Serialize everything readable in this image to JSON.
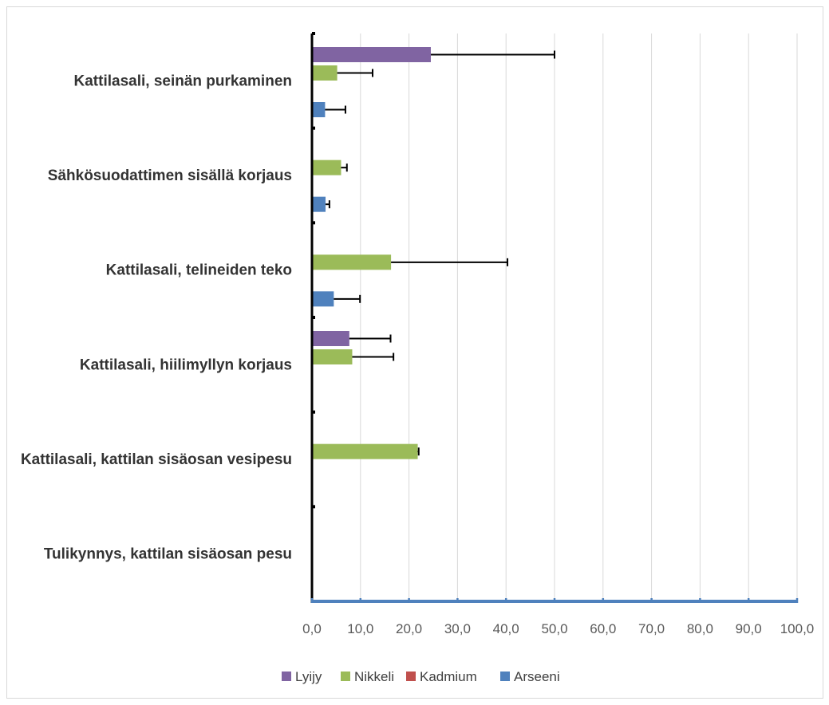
{
  "chart_data": {
    "type": "bar",
    "orientation": "horizontal",
    "title": "",
    "xlabel": "",
    "ylabel": "",
    "categories": [
      "Kattilasali, seinän purkaminen",
      "Sähkösuodattimen sisällä korjaus",
      "Kattilasali, telineiden teko",
      "Kattilasali, hiilimyllyn korjaus",
      "Kattilasali, kattilan sisäosan vesipesu",
      "Tulikynnys, kattilan sisäosan pesu"
    ],
    "series": [
      {
        "name": "Lyijy",
        "color": "#8064a2",
        "values": [
          24.5,
          0,
          0,
          7.7,
          0,
          0
        ],
        "errors": [
          25.5,
          0,
          0,
          8.5,
          0,
          0
        ]
      },
      {
        "name": "Nikkeli",
        "color": "#9bbb59",
        "values": [
          5.2,
          6.0,
          16.3,
          8.3,
          21.8,
          0
        ],
        "errors": [
          7.3,
          1.2,
          24.0,
          8.5,
          0.2,
          0
        ]
      },
      {
        "name": "Kadmium",
        "color": "#c0504d",
        "values": [
          0,
          0,
          0,
          0,
          0,
          0
        ],
        "errors": [
          0,
          0,
          0,
          0,
          0,
          0
        ]
      },
      {
        "name": "Arseeni",
        "color": "#4f81bd",
        "values": [
          2.7,
          2.8,
          4.5,
          0,
          0,
          0
        ],
        "errors": [
          4.2,
          0.8,
          5.4,
          0,
          0,
          0
        ]
      }
    ],
    "xlim": [
      0,
      100
    ],
    "xticks": [
      "0,0",
      "10,0",
      "20,0",
      "30,0",
      "40,0",
      "50,0",
      "60,0",
      "70,0",
      "80,0",
      "90,0",
      "100,0"
    ],
    "grid": "vertical",
    "legend": "bottom"
  }
}
